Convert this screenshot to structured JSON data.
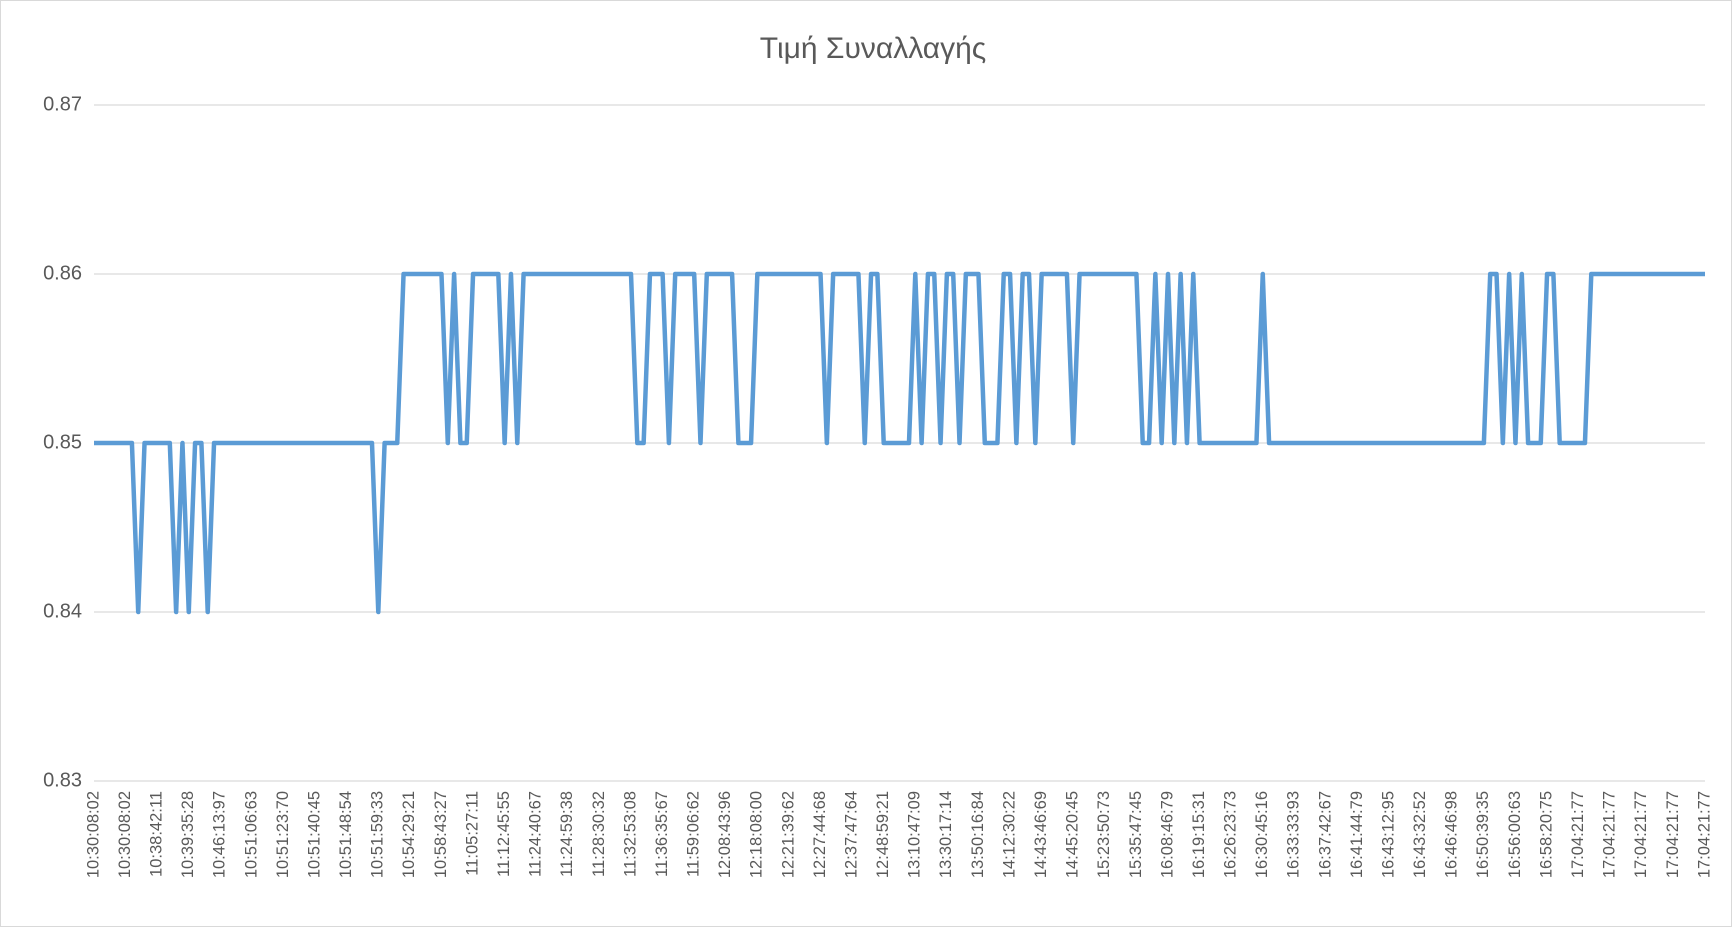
{
  "chart_data": {
    "type": "line",
    "title": "Τιμή Συναλλαγής",
    "categories": [
      "10:30:08:02",
      null,
      null,
      null,
      null,
      "10:30:08:02",
      null,
      null,
      null,
      null,
      "10:38:42:11",
      null,
      null,
      null,
      null,
      "10:39:35:28",
      null,
      null,
      null,
      null,
      "10:46:13:97",
      null,
      null,
      null,
      null,
      "10:51:06:63",
      null,
      null,
      null,
      null,
      "10:51:23:70",
      null,
      null,
      null,
      null,
      "10:51:40:45",
      null,
      null,
      null,
      null,
      "10:51:48:54",
      null,
      null,
      null,
      null,
      "10:51:59:33",
      null,
      null,
      null,
      null,
      "10:54:29:21",
      null,
      null,
      null,
      null,
      "10:58:43:27",
      null,
      null,
      null,
      null,
      "11:05:27:11",
      null,
      null,
      null,
      null,
      "11:12:45:55",
      null,
      null,
      null,
      null,
      "11:24:40:67",
      null,
      null,
      null,
      null,
      "11:24:59:38",
      null,
      null,
      null,
      null,
      "11:28:30:32",
      null,
      null,
      null,
      null,
      "11:32:53:08",
      null,
      null,
      null,
      null,
      "11:36:35:67",
      null,
      null,
      null,
      null,
      "11:59:06:62",
      null,
      null,
      null,
      null,
      "12:08:43:96",
      null,
      null,
      null,
      null,
      "12:18:08:00",
      null,
      null,
      null,
      null,
      "12:21:39:62",
      null,
      null,
      null,
      null,
      "12:27:44:68",
      null,
      null,
      null,
      null,
      "12:37:47:64",
      null,
      null,
      null,
      null,
      "12:48:59:21",
      null,
      null,
      null,
      null,
      "13:10:47:09",
      null,
      null,
      null,
      null,
      "13:30:17:14",
      null,
      null,
      null,
      null,
      "13:50:16:84",
      null,
      null,
      null,
      null,
      "14:12:30:22",
      null,
      null,
      null,
      null,
      "14:43:46:69",
      null,
      null,
      null,
      null,
      "14:45:20:45",
      null,
      null,
      null,
      null,
      "15:23:50:73",
      null,
      null,
      null,
      null,
      "15:35:47:45",
      null,
      null,
      null,
      null,
      "16:08:46:79",
      null,
      null,
      null,
      null,
      "16:19:15:31",
      null,
      null,
      null,
      null,
      "16:26:23:73",
      null,
      null,
      null,
      null,
      "16:30:45:16",
      null,
      null,
      null,
      null,
      "16:33:33:93",
      null,
      null,
      null,
      null,
      "16:37:42:67",
      null,
      null,
      null,
      null,
      "16:41:44:79",
      null,
      null,
      null,
      null,
      "16:43:12:95",
      null,
      null,
      null,
      null,
      "16:43:32:52",
      null,
      null,
      null,
      null,
      "16:46:46:98",
      null,
      null,
      null,
      null,
      "16:50:39:35",
      null,
      null,
      null,
      null,
      "16:56:00:63",
      null,
      null,
      null,
      null,
      "16:58:20:75",
      null,
      null,
      null,
      null,
      "17:04:21:77",
      null,
      null,
      null,
      null,
      "17:04:21:77",
      null,
      null,
      null,
      null,
      "17:04:21:77",
      null,
      null,
      null,
      null,
      "17:04:21:77",
      null,
      null,
      null,
      null,
      "17:04:21:77"
    ],
    "series": [
      {
        "name": "Τιμή Συναλλαγής",
        "color": "#5b9bd5",
        "values": [
          0.85,
          0.85,
          0.85,
          0.85,
          0.85,
          0.85,
          0.85,
          0.84,
          0.85,
          0.85,
          0.85,
          0.85,
          0.85,
          0.84,
          0.85,
          0.84,
          0.85,
          0.85,
          0.84,
          0.85,
          0.85,
          0.85,
          0.85,
          0.85,
          0.85,
          0.85,
          0.85,
          0.85,
          0.85,
          0.85,
          0.85,
          0.85,
          0.85,
          0.85,
          0.85,
          0.85,
          0.85,
          0.85,
          0.85,
          0.85,
          0.85,
          0.85,
          0.85,
          0.85,
          0.85,
          0.84,
          0.85,
          0.85,
          0.85,
          0.86,
          0.86,
          0.86,
          0.86,
          0.86,
          0.86,
          0.86,
          0.85,
          0.86,
          0.85,
          0.85,
          0.86,
          0.86,
          0.86,
          0.86,
          0.86,
          0.85,
          0.86,
          0.85,
          0.86,
          0.86,
          0.86,
          0.86,
          0.86,
          0.86,
          0.86,
          0.86,
          0.86,
          0.86,
          0.86,
          0.86,
          0.86,
          0.86,
          0.86,
          0.86,
          0.86,
          0.86,
          0.85,
          0.85,
          0.86,
          0.86,
          0.86,
          0.85,
          0.86,
          0.86,
          0.86,
          0.86,
          0.85,
          0.86,
          0.86,
          0.86,
          0.86,
          0.86,
          0.85,
          0.85,
          0.85,
          0.86,
          0.86,
          0.86,
          0.86,
          0.86,
          0.86,
          0.86,
          0.86,
          0.86,
          0.86,
          0.86,
          0.85,
          0.86,
          0.86,
          0.86,
          0.86,
          0.86,
          0.85,
          0.86,
          0.86,
          0.85,
          0.85,
          0.85,
          0.85,
          0.85,
          0.86,
          0.85,
          0.86,
          0.86,
          0.85,
          0.86,
          0.86,
          0.85,
          0.86,
          0.86,
          0.86,
          0.85,
          0.85,
          0.85,
          0.86,
          0.86,
          0.85,
          0.86,
          0.86,
          0.85,
          0.86,
          0.86,
          0.86,
          0.86,
          0.86,
          0.85,
          0.86,
          0.86,
          0.86,
          0.86,
          0.86,
          0.86,
          0.86,
          0.86,
          0.86,
          0.86,
          0.85,
          0.85,
          0.86,
          0.85,
          0.86,
          0.85,
          0.86,
          0.85,
          0.86,
          0.85,
          0.85,
          0.85,
          0.85,
          0.85,
          0.85,
          0.85,
          0.85,
          0.85,
          0.85,
          0.86,
          0.85,
          0.85,
          0.85,
          0.85,
          0.85,
          0.85,
          0.85,
          0.85,
          0.85,
          0.85,
          0.85,
          0.85,
          0.85,
          0.85,
          0.85,
          0.85,
          0.85,
          0.85,
          0.85,
          0.85,
          0.85,
          0.85,
          0.85,
          0.85,
          0.85,
          0.85,
          0.85,
          0.85,
          0.85,
          0.85,
          0.85,
          0.85,
          0.85,
          0.85,
          0.85,
          0.86,
          0.86,
          0.85,
          0.86,
          0.85,
          0.86,
          0.85,
          0.85,
          0.85,
          0.86,
          0.86,
          0.85,
          0.85,
          0.85,
          0.85,
          0.85,
          0.86,
          0.86,
          0.86,
          0.86,
          0.86,
          0.86,
          0.86,
          0.86,
          0.86,
          0.86,
          0.86,
          0.86,
          0.86,
          0.86,
          0.86,
          0.86,
          0.86,
          0.86,
          0.86
        ]
      }
    ],
    "ylim": [
      0.83,
      0.87
    ],
    "yticks": [
      0.83,
      0.84,
      0.85,
      0.86,
      0.87
    ],
    "grid": true
  }
}
